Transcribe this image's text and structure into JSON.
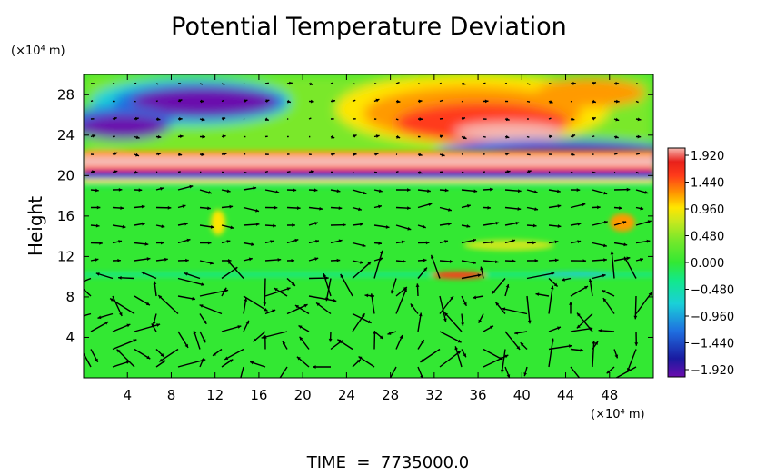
{
  "chart_data": {
    "type": "heatmap",
    "title": "Potential Temperature Deviation",
    "ylabel": "Height",
    "xlabel": "",
    "x_unit": "(×10⁴ m)",
    "y_unit": "(×10⁴ m)",
    "xlim": [
      0,
      52
    ],
    "ylim": [
      0,
      30
    ],
    "x_ticks": [
      4,
      8,
      12,
      16,
      20,
      24,
      28,
      32,
      36,
      40,
      44,
      48
    ],
    "y_ticks": [
      4,
      8,
      12,
      16,
      20,
      24,
      28
    ],
    "colorbar_ticks": [
      {
        "value": 1.92,
        "label": "1.920"
      },
      {
        "value": 1.44,
        "label": "1.440"
      },
      {
        "value": 0.96,
        "label": "0.960"
      },
      {
        "value": 0.48,
        "label": "0.480"
      },
      {
        "value": 0.0,
        "label": "0.000"
      },
      {
        "value": -0.48,
        "label": "−0.480"
      },
      {
        "value": -0.96,
        "label": "−0.960"
      },
      {
        "value": -1.44,
        "label": "−1.440"
      },
      {
        "value": -1.92,
        "label": "−1.920"
      }
    ],
    "colorbar_range": [
      -2.05,
      2.05
    ],
    "colorbar_colors": [
      "#6a0dad",
      "#1a1aa0",
      "#1f6fe0",
      "#1ad0d8",
      "#12e88c",
      "#33e833",
      "#7ae82a",
      "#c8e81e",
      "#ffe600",
      "#ff9a00",
      "#ff3b1a",
      "#e8201a",
      "#f7b8b0"
    ],
    "time_label": "TIME  =  7735000.0"
  }
}
